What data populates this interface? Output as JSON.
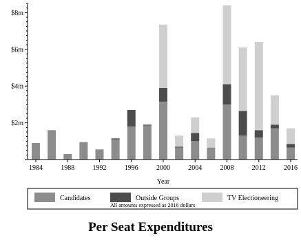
{
  "chart_data": {
    "type": "bar",
    "stacked": true,
    "title": "Per Seat Expenditures",
    "xlabel": "Year",
    "ylabel": "",
    "note": "All amounts expressed as 2016 dollars",
    "ylim": [
      0,
      8.5
    ],
    "y_ticks": [
      {
        "value": 2,
        "label": "$2m"
      },
      {
        "value": 4,
        "label": "$4m"
      },
      {
        "value": 6,
        "label": "$6m"
      },
      {
        "value": 8,
        "label": "$8m"
      }
    ],
    "x_ticks": [
      1984,
      1988,
      1992,
      1996,
      2000,
      2004,
      2008,
      2012,
      2016
    ],
    "categories": [
      1984,
      1986,
      1988,
      1990,
      1992,
      1994,
      1996,
      1998,
      2000,
      2002,
      2004,
      2006,
      2008,
      2010,
      2012,
      2014,
      2016
    ],
    "series": [
      {
        "name": "Candidates",
        "color": "#8c8c8c",
        "values": [
          0.9,
          1.6,
          0.3,
          0.95,
          0.55,
          1.1,
          1.8,
          1.85,
          3.15,
          0.65,
          1.0,
          0.65,
          3.0,
          1.3,
          1.2,
          1.7,
          0.65
        ]
      },
      {
        "name": "Outside Groups",
        "color": "#4d4d4d",
        "values": [
          0,
          0,
          0,
          0,
          0,
          0.05,
          0.9,
          0.05,
          0.75,
          0.05,
          0.45,
          0,
          1.1,
          1.35,
          0.4,
          0.2,
          0.2
        ]
      },
      {
        "name": "TV Electioneering",
        "color": "#cfcfcf",
        "values": [
          0,
          0,
          0,
          0,
          0,
          0,
          0,
          0,
          3.45,
          0.6,
          0.85,
          0.5,
          4.3,
          3.45,
          4.8,
          1.6,
          0.85
        ]
      }
    ],
    "legend": {
      "position": "bottom",
      "border": true
    },
    "grid": false
  }
}
